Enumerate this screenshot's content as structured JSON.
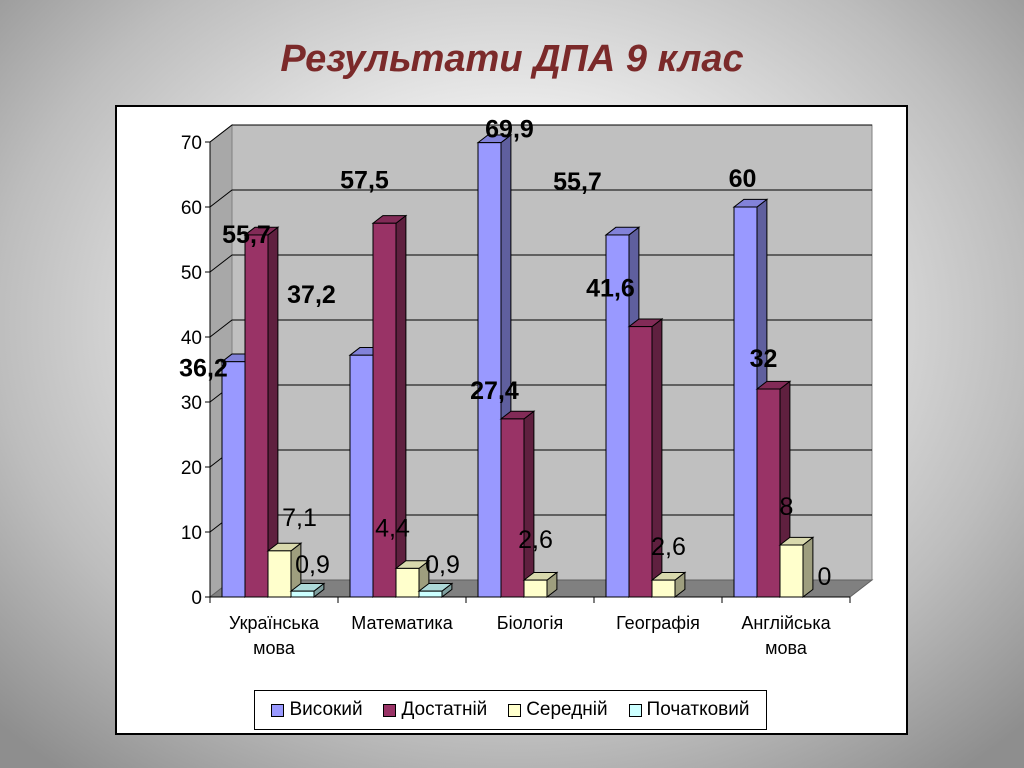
{
  "slide": {
    "title": "Результати ДПА  9 клас"
  },
  "chart_data": {
    "type": "bar",
    "title": "",
    "xlabel": "",
    "ylabel": "",
    "ylim": [
      0,
      70
    ],
    "yticks": [
      0,
      10,
      20,
      30,
      40,
      50,
      60,
      70
    ],
    "grid": true,
    "legend_position": "bottom",
    "categories": [
      "Українська мова",
      "Математика",
      "Біологія",
      "Географія",
      "Англійська мова"
    ],
    "series": [
      {
        "name": "Високий",
        "color": "#9999ff",
        "values": [
          36.2,
          37.2,
          69.9,
          55.7,
          60
        ],
        "labels": [
          "36,2",
          "37,2",
          "69,9",
          "55,7",
          "60"
        ]
      },
      {
        "name": "Достатній",
        "color": "#993366",
        "values": [
          55.7,
          57.5,
          27.4,
          41.6,
          32
        ],
        "labels": [
          "55,7",
          "57,5",
          "27,4",
          "41,6",
          "32"
        ]
      },
      {
        "name": "Середній",
        "color": "#ffffcc",
        "values": [
          7.1,
          4.4,
          2.6,
          2.6,
          8
        ],
        "labels": [
          "7,1",
          "4,4",
          "2,6",
          "2,6",
          "8"
        ]
      },
      {
        "name": "Початковий",
        "color": "#ccffff",
        "values": [
          0.9,
          0.9,
          0,
          0,
          0
        ],
        "labels": [
          "0,9",
          "0,9",
          "",
          "",
          "0"
        ]
      }
    ]
  }
}
